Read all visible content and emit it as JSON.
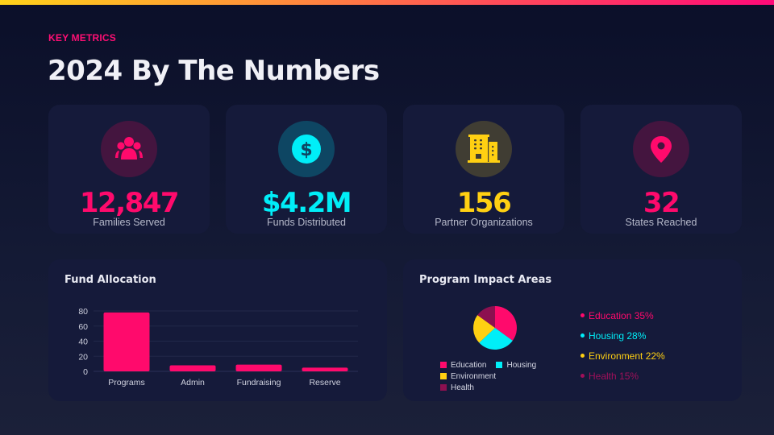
{
  "header": {
    "eyebrow": "KEY METRICS",
    "title": "2024 By The Numbers"
  },
  "colors": {
    "pink": "#ff0a6c",
    "cyan": "#00eef8",
    "yellow": "#ffd012",
    "plum": "#8c1050",
    "card": "#151a3a"
  },
  "stats": [
    {
      "value": "12,847",
      "label": "Families Served",
      "icon": "users-group-icon",
      "color": "#ff0a6c",
      "bg": "#44153f"
    },
    {
      "value": "$4.2M",
      "label": "Funds Distributed",
      "icon": "dollar-coin-icon",
      "color": "#00eef8",
      "bg": "#0e4663"
    },
    {
      "value": "156",
      "label": "Partner Organizations",
      "icon": "building-icon",
      "color": "#ffd012",
      "bg": "#403d33"
    },
    {
      "value": "32",
      "label": "States Reached",
      "icon": "map-pin-icon",
      "color": "#ff0a6c",
      "bg": "#44153f"
    }
  ],
  "fund_panel": {
    "title": "Fund Allocation"
  },
  "impact_panel": {
    "title": "Program Impact Areas",
    "legend_text": [
      {
        "label": "Education 35%",
        "color": "#ff0a6c"
      },
      {
        "label": "Housing 28%",
        "color": "#00eef8"
      },
      {
        "label": "Environment 22%",
        "color": "#ffd012"
      },
      {
        "label": "Health 15%",
        "color": "#a0105a"
      }
    ],
    "pie_legend": [
      "Education",
      "Housing",
      "Environment",
      "Health"
    ]
  },
  "chart_data": [
    {
      "type": "bar",
      "title": "Fund Allocation",
      "categories": [
        "Programs",
        "Admin",
        "Fundraising",
        "Reserve"
      ],
      "values": [
        78,
        8,
        9,
        5
      ],
      "xlabel": "",
      "ylabel": "",
      "ylim": [
        0,
        80
      ],
      "yticks": [
        0,
        20,
        40,
        60,
        80
      ],
      "grid": true,
      "color": "#ff0a6c"
    },
    {
      "type": "pie",
      "title": "Program Impact Areas",
      "categories": [
        "Education",
        "Housing",
        "Environment",
        "Health"
      ],
      "values": [
        35,
        28,
        22,
        15
      ],
      "colors": [
        "#ff0a6c",
        "#00eef8",
        "#ffd012",
        "#8c1050"
      ],
      "legend_position": "bottom"
    }
  ]
}
